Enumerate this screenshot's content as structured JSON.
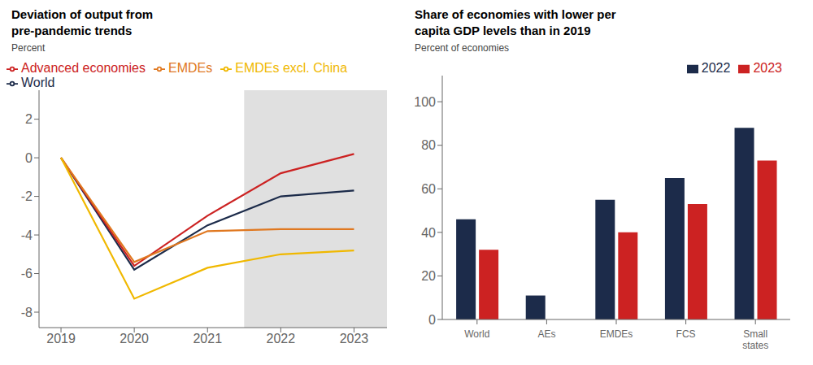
{
  "chart_data": [
    {
      "type": "line",
      "title": "Deviation of output from\npre-pandemic trends",
      "y_label": "Percent",
      "x": [
        2019,
        2020,
        2021,
        2022,
        2023
      ],
      "xlim": [
        2018.7,
        2023.45
      ],
      "xticks": [
        2019,
        2020,
        2021,
        2022,
        2023
      ],
      "ylim": [
        -8.8,
        3.5
      ],
      "yticks": [
        2,
        0,
        -2,
        -4,
        -6,
        -8
      ],
      "series": [
        {
          "name": "World",
          "color": "#1c2b4a",
          "values": [
            0,
            -5.8,
            -3.5,
            -2.0,
            -1.7
          ]
        },
        {
          "name": "Advanced economies",
          "color": "#cc2222",
          "values": [
            0,
            -5.6,
            -3.0,
            -0.8,
            0.2
          ]
        },
        {
          "name": "EMDEs",
          "color": "#e07820",
          "values": [
            0,
            -5.4,
            -3.8,
            -3.7,
            -3.7
          ]
        },
        {
          "name": "EMDEs excl. China",
          "color": "#f0b800",
          "values": [
            0,
            -7.3,
            -5.7,
            -5.0,
            -4.8
          ]
        }
      ],
      "shaded_x": [
        2021.5,
        2023.45
      ],
      "grid": false,
      "legend": "upper left"
    },
    {
      "type": "bar",
      "title": "Share of economies with lower per\ncapita GDP levels than in 2019",
      "y_label": "Percent of economies",
      "categories": [
        "World",
        "AEs",
        "EMDEs",
        "FCS",
        "Small\nstates"
      ],
      "series": [
        {
          "name": "2022",
          "color": "#1c2b4a",
          "values": [
            46,
            11,
            55,
            65,
            88
          ]
        },
        {
          "name": "2023",
          "color": "#cc2222",
          "values": [
            32,
            0,
            40,
            53,
            73
          ]
        }
      ],
      "ylim": [
        0,
        112
      ],
      "yticks": [
        0,
        20,
        40,
        60,
        80,
        100
      ],
      "grid": false,
      "legend": "upper right"
    }
  ]
}
